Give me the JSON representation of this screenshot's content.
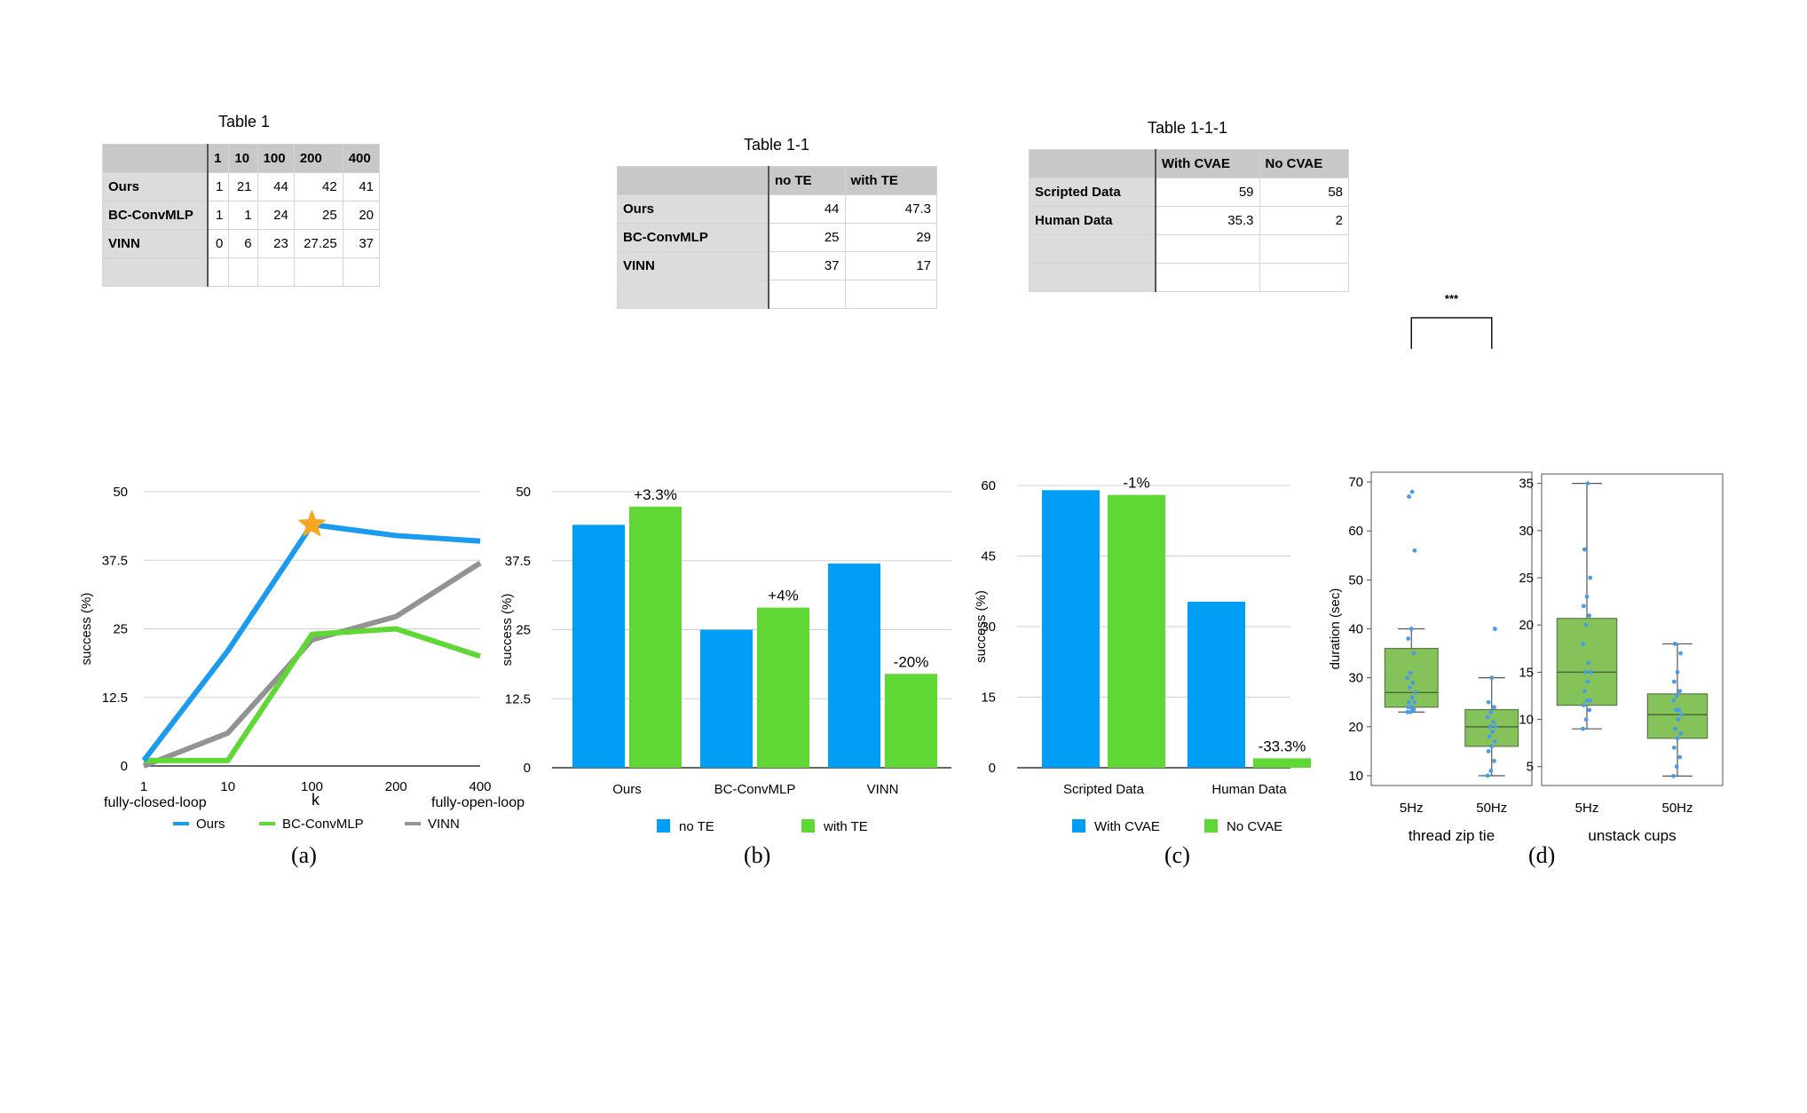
{
  "tables": [
    {
      "title": "Table 1",
      "header": [
        "",
        "1",
        "10",
        "100",
        "200",
        "400"
      ],
      "rows": [
        [
          "Ours",
          "1",
          "21",
          "44",
          "42",
          "41"
        ],
        [
          "BC-ConvMLP",
          "1",
          "1",
          "24",
          "25",
          "20"
        ],
        [
          "VINN",
          "0",
          "6",
          "23",
          "27.25",
          "37"
        ],
        [
          "",
          "",
          "",
          "",
          "",
          ""
        ]
      ]
    },
    {
      "title": "Table 1-1",
      "header": [
        "",
        "no TE",
        "with TE"
      ],
      "rows": [
        [
          "Ours",
          "44",
          "47.3"
        ],
        [
          "BC-ConvMLP",
          "25",
          "29"
        ],
        [
          "VINN",
          "37",
          "17"
        ],
        [
          "",
          "",
          ""
        ]
      ]
    },
    {
      "title": "Table 1-1-1",
      "header": [
        "",
        "With CVAE",
        "No CVAE"
      ],
      "rows": [
        [
          "Scripted Data",
          "59",
          "58"
        ],
        [
          "Human Data",
          "35.3",
          "2"
        ],
        [
          "",
          "",
          ""
        ],
        [
          "",
          "",
          ""
        ]
      ]
    }
  ],
  "chart_data": [
    {
      "panel": "(a)",
      "type": "line",
      "x": [
        "1",
        "10",
        "100",
        "200",
        "400"
      ],
      "xlabel": "k",
      "x_end_labels": [
        "fully-closed-loop",
        "fully-open-loop"
      ],
      "ylabel": "success (%)",
      "ylim": [
        0,
        50
      ],
      "yticks": [
        "0",
        "12.5",
        "25",
        "37.5",
        "50"
      ],
      "series": [
        {
          "name": "Ours",
          "color": "#1a9bf0",
          "values": [
            1,
            21,
            44,
            42,
            41
          ]
        },
        {
          "name": "BC-ConvMLP",
          "color": "#5fd735",
          "values": [
            1,
            1,
            24,
            25,
            20
          ]
        },
        {
          "name": "VINN",
          "color": "#939393",
          "values": [
            0,
            6,
            23,
            27.25,
            37
          ]
        }
      ],
      "marker": {
        "series": "Ours",
        "x": "100",
        "value": 44,
        "shape": "star",
        "color": "#f5a623"
      },
      "grid": true,
      "legend": "bottom"
    },
    {
      "panel": "(b)",
      "type": "bar",
      "categories": [
        "Ours",
        "BC-ConvMLP",
        "VINN"
      ],
      "ylabel": "success (%)",
      "ylim": [
        0,
        50
      ],
      "yticks": [
        "0",
        "12.5",
        "25",
        "37.5",
        "50"
      ],
      "series": [
        {
          "name": "no TE",
          "color": "#009ef5",
          "values": [
            44,
            25,
            37
          ]
        },
        {
          "name": "with TE",
          "color": "#5fd735",
          "values": [
            47.3,
            29,
            17
          ]
        }
      ],
      "annotations": [
        "+3.3%",
        "+4%",
        "-20%"
      ],
      "grid": true,
      "legend": "bottom"
    },
    {
      "panel": "(c)",
      "type": "bar",
      "categories": [
        "Scripted Data",
        "Human Data"
      ],
      "ylabel": "success (%)",
      "ylim": [
        0,
        60
      ],
      "yticks": [
        "0",
        "15",
        "30",
        "45",
        "60"
      ],
      "series": [
        {
          "name": "With CVAE",
          "color": "#009ef5",
          "values": [
            59,
            35.3
          ]
        },
        {
          "name": "No CVAE",
          "color": "#5fd735",
          "values": [
            58,
            2
          ]
        }
      ],
      "annotations": [
        "-1%",
        "-33.3%"
      ],
      "grid": true,
      "legend": "bottom"
    },
    {
      "panel": "(d)",
      "type": "box",
      "title": "thread zip tie",
      "ylabel": "duration (sec)",
      "ylim": [
        8,
        72
      ],
      "yticks": [
        10,
        20,
        30,
        40,
        50,
        60,
        70
      ],
      "categories": [
        "5Hz",
        "50Hz"
      ],
      "box_color": "#85c25a",
      "point_color": "#4a9be8",
      "boxes": [
        {
          "whisker_low": 23,
          "q1": 24,
          "median": 27,
          "q3": 36,
          "whisker_high": 40,
          "points": [
            23,
            23,
            23.5,
            24,
            24,
            25,
            25,
            26,
            27,
            28,
            29,
            30,
            31,
            35,
            38,
            40,
            56,
            67,
            68
          ]
        },
        {
          "whisker_low": 10,
          "q1": 16,
          "median": 20,
          "q3": 23.5,
          "whisker_high": 30,
          "points": [
            10,
            11,
            13,
            15,
            16,
            17,
            18,
            19,
            20,
            20,
            21,
            22,
            23,
            24,
            25,
            30,
            40
          ]
        }
      ],
      "significance": "***"
    },
    {
      "panel": "(d)",
      "type": "box",
      "title": "unstack cups",
      "ylim": [
        3,
        36
      ],
      "yticks": [
        5,
        10,
        15,
        20,
        25,
        30,
        35
      ],
      "categories": [
        "5Hz",
        "50Hz"
      ],
      "box_color": "#85c25a",
      "point_color": "#4a9be8",
      "boxes": [
        {
          "whisker_low": 9,
          "q1": 11.5,
          "median": 15,
          "q3": 20.7,
          "whisker_high": 35,
          "points": [
            9,
            10,
            11,
            11.5,
            12,
            12,
            13,
            14,
            15,
            15,
            16,
            18,
            20,
            21,
            22,
            23,
            25,
            28,
            35
          ]
        },
        {
          "whisker_low": 4,
          "q1": 8,
          "median": 10.5,
          "q3": 12.7,
          "whisker_high": 18,
          "points": [
            4,
            5,
            6,
            7,
            8,
            8.5,
            9,
            10,
            10.5,
            11,
            11,
            12,
            12.5,
            13,
            14,
            15,
            17,
            18
          ]
        }
      ]
    }
  ],
  "panel_labels": [
    "(a)",
    "(b)",
    "(c)",
    "(d)"
  ]
}
